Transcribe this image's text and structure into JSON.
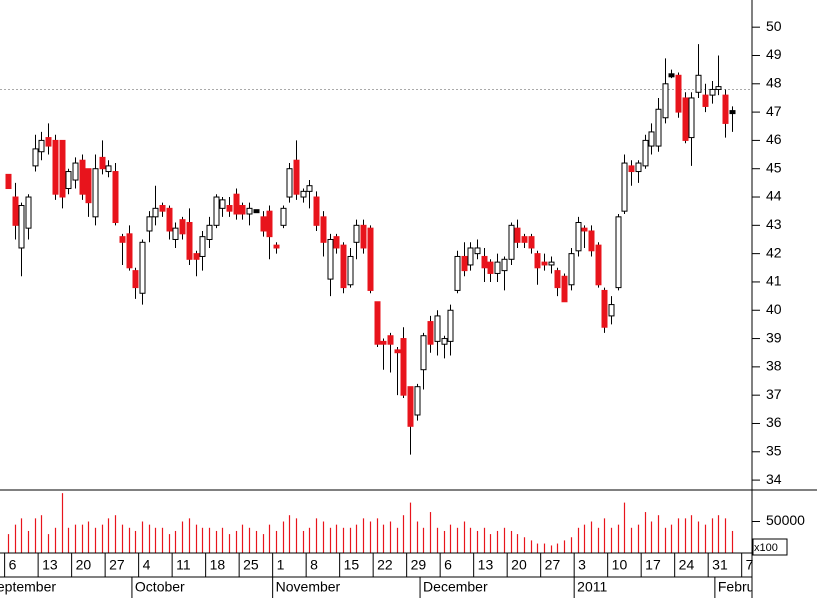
{
  "chart_data": {
    "type": "candlestick",
    "open": [
      44.8,
      44.0,
      42.2,
      42.9,
      45.1,
      45.6,
      46.1,
      46.0,
      46.0,
      44.3,
      44.6,
      45.3,
      45.0,
      43.3,
      45.4,
      44.9,
      44.9,
      42.6,
      42.7,
      41.4,
      40.6,
      42.8,
      43.3,
      43.7,
      43.6,
      42.5,
      43.2,
      43.1,
      42.0,
      41.9,
      42.5,
      43.0,
      43.6,
      43.7,
      44.1,
      43.7,
      43.4,
      43.5,
      43.3,
      43.5,
      42.3,
      43.0,
      44.0,
      45.3,
      44.0,
      44.2,
      44.0,
      43.3,
      41.1,
      42.6,
      42.3,
      40.9,
      42.4,
      43.0,
      42.9,
      40.3,
      38.9,
      39.1,
      38.6,
      39.0,
      37.3,
      36.3,
      37.9,
      39.6,
      38.9,
      38.8,
      38.9,
      40.7,
      41.9,
      41.6,
      42.0,
      41.9,
      41.7,
      41.3,
      41.4,
      41.8,
      42.9,
      42.6,
      42.6,
      42.0,
      41.7,
      41.6,
      41.4,
      41.2,
      40.9,
      42.1,
      42.9,
      42.8,
      42.3,
      40.7,
      39.8,
      40.8,
      43.5,
      45.1,
      44.9,
      45.1,
      45.8,
      45.8,
      46.8,
      48.3,
      48.3,
      47.5,
      46.1,
      47.7,
      47.6,
      47.6,
      47.8,
      47.6,
      47.0
    ],
    "high": [
      44.8,
      44.5,
      43.8,
      44.1,
      46.2,
      46.3,
      46.6,
      46.2,
      46.0,
      45.0,
      45.4,
      45.5,
      45.0,
      45.5,
      46.0,
      45.3,
      45.2,
      42.7,
      43.0,
      41.5,
      42.5,
      43.5,
      44.4,
      43.8,
      43.7,
      43.1,
      43.3,
      43.6,
      42.1,
      42.8,
      43.3,
      44.1,
      44.0,
      44.0,
      44.3,
      43.8,
      43.8,
      43.5,
      43.5,
      43.7,
      42.4,
      43.7,
      45.2,
      46.0,
      44.3,
      44.6,
      44.2,
      43.5,
      42.7,
      42.7,
      42.4,
      42.2,
      43.2,
      43.2,
      43.0,
      40.3,
      39.0,
      39.2,
      38.7,
      39.4,
      37.3,
      37.4,
      39.2,
      39.8,
      40.0,
      39.1,
      40.2,
      42.1,
      42.4,
      42.4,
      42.5,
      42.2,
      41.8,
      42.0,
      41.9,
      43.1,
      43.2,
      42.7,
      42.7,
      42.1,
      42.0,
      41.9,
      41.5,
      41.3,
      42.2,
      43.3,
      43.0,
      43.0,
      42.4,
      40.8,
      40.5,
      43.4,
      45.5,
      45.3,
      45.3,
      46.2,
      46.6,
      47.5,
      48.9,
      48.5,
      48.4,
      47.7,
      47.7,
      49.4,
      48.0,
      48.1,
      49.0,
      47.8,
      47.2
    ],
    "low": [
      44.3,
      42.5,
      41.2,
      42.5,
      44.9,
      45.3,
      45.5,
      43.9,
      43.6,
      44.1,
      44.3,
      43.9,
      43.3,
      43.0,
      44.8,
      44.7,
      43.0,
      41.6,
      41.4,
      40.4,
      40.2,
      42.4,
      43.0,
      43.3,
      42.5,
      42.2,
      42.5,
      41.6,
      41.2,
      41.4,
      42.2,
      42.9,
      43.3,
      43.3,
      43.2,
      43.2,
      43.0,
      43.5,
      42.6,
      41.8,
      42.0,
      42.9,
      43.8,
      43.9,
      43.8,
      43.6,
      42.8,
      41.9,
      40.5,
      42.0,
      40.6,
      40.8,
      41.8,
      42.0,
      40.6,
      38.7,
      37.9,
      37.8,
      37.0,
      36.9,
      34.9,
      36.1,
      37.2,
      38.5,
      38.4,
      38.3,
      38.4,
      40.6,
      41.2,
      41.4,
      41.8,
      41.0,
      41.0,
      41.0,
      40.7,
      41.6,
      42.2,
      42.2,
      42.0,
      40.9,
      41.4,
      41.3,
      40.5,
      40.3,
      40.7,
      41.9,
      42.2,
      41.9,
      40.8,
      39.2,
      39.5,
      40.7,
      43.4,
      44.4,
      44.5,
      45.0,
      45.5,
      45.6,
      46.6,
      48.2,
      46.8,
      45.9,
      45.1,
      47.5,
      47.0,
      47.3,
      47.6,
      46.1,
      46.3
    ],
    "close": [
      44.3,
      43.0,
      43.7,
      44.0,
      45.7,
      46.0,
      45.8,
      44.1,
      44.0,
      44.9,
      45.2,
      44.1,
      43.8,
      45.0,
      45.0,
      45.1,
      43.1,
      42.4,
      41.5,
      40.8,
      42.4,
      43.3,
      43.6,
      43.5,
      42.8,
      42.9,
      42.7,
      41.8,
      41.8,
      42.6,
      43.0,
      44.0,
      43.9,
      43.5,
      43.4,
      43.4,
      43.6,
      43.5,
      42.8,
      42.6,
      42.2,
      43.6,
      45.0,
      44.1,
      44.2,
      44.4,
      43.0,
      42.4,
      42.5,
      42.2,
      40.8,
      41.9,
      43.0,
      42.2,
      40.7,
      38.8,
      38.8,
      38.8,
      38.5,
      37.0,
      35.9,
      37.3,
      39.1,
      38.8,
      39.8,
      39.0,
      40.0,
      41.9,
      41.4,
      42.2,
      42.2,
      41.5,
      41.3,
      41.7,
      41.8,
      43.0,
      42.4,
      42.4,
      42.2,
      41.5,
      41.6,
      41.7,
      40.8,
      40.3,
      42.0,
      43.1,
      42.8,
      42.1,
      40.9,
      39.4,
      40.2,
      43.3,
      45.2,
      44.9,
      45.2,
      46.0,
      46.3,
      47.1,
      48.0,
      48.3,
      47.0,
      46.0,
      47.5,
      48.3,
      47.2,
      47.8,
      47.9,
      46.6,
      47.0
    ],
    "volume": [
      30000,
      45000,
      55000,
      35000,
      55000,
      60000,
      30000,
      40000,
      95000,
      40000,
      45000,
      45000,
      50000,
      40000,
      45000,
      55000,
      60000,
      45000,
      40000,
      35000,
      50000,
      45000,
      40000,
      40000,
      30000,
      35000,
      50000,
      55000,
      45000,
      40000,
      40000,
      35000,
      40000,
      30000,
      35000,
      45000,
      40000,
      35000,
      30000,
      45000,
      35000,
      50000,
      60000,
      55000,
      35000,
      40000,
      55000,
      50000,
      40000,
      45000,
      40000,
      40000,
      45000,
      55000,
      50000,
      55000,
      45000,
      50000,
      40000,
      60000,
      80000,
      50000,
      40000,
      65000,
      40000,
      35000,
      45000,
      40000,
      50000,
      40000,
      35000,
      40000,
      30000,
      35000,
      40000,
      35000,
      30000,
      25000,
      20000,
      15000,
      15000,
      12000,
      15000,
      20000,
      25000,
      40000,
      45000,
      50000,
      40000,
      55000,
      40000,
      45000,
      80000,
      40000,
      45000,
      65000,
      50000,
      60000,
      40000,
      45000,
      55000,
      55000,
      60000,
      50000,
      45000,
      55000,
      60000,
      55000,
      35000
    ],
    "reference_line": 47.8,
    "xlim": [
      -1.19,
      111.04
    ],
    "xticks": [
      {
        "value": -0.5,
        "label": "6"
      },
      {
        "value": 4.5,
        "label": "13"
      },
      {
        "value": 9.5,
        "label": "20"
      },
      {
        "value": 14.5,
        "label": "27"
      },
      {
        "value": 19.5,
        "label": "4"
      },
      {
        "value": 24.5,
        "label": "11"
      },
      {
        "value": 29.5,
        "label": "18"
      },
      {
        "value": 34.5,
        "label": "25"
      },
      {
        "value": 39.5,
        "label": "1"
      },
      {
        "value": 44.5,
        "label": "8"
      },
      {
        "value": 49.5,
        "label": "15"
      },
      {
        "value": 54.5,
        "label": "22"
      },
      {
        "value": 59.5,
        "label": "29"
      },
      {
        "value": 64.5,
        "label": "6"
      },
      {
        "value": 69.5,
        "label": "13"
      },
      {
        "value": 74.5,
        "label": "20"
      },
      {
        "value": 79.5,
        "label": "27"
      },
      {
        "value": 84.5,
        "label": "3"
      },
      {
        "value": 89.5,
        "label": "10"
      },
      {
        "value": 94.5,
        "label": "17"
      },
      {
        "value": 99.5,
        "label": "24"
      },
      {
        "value": 104.5,
        "label": "31"
      },
      {
        "value": 109.5,
        "label": "7"
      }
    ],
    "month_ticks": [
      {
        "value": -3.5,
        "label": "September"
      },
      {
        "value": 18.5,
        "label": "October"
      },
      {
        "value": 39.5,
        "label": "November"
      },
      {
        "value": 61.5,
        "label": "December"
      },
      {
        "value": 84.5,
        "label": "2011"
      },
      {
        "value": 105.5,
        "label": "February"
      }
    ],
    "ylim": [
      33.65,
      50.96
    ],
    "yticks": [
      34,
      35,
      36,
      37,
      38,
      39,
      40,
      41,
      42,
      43,
      44,
      45,
      46,
      47,
      48,
      49,
      50
    ],
    "volume_ylim": [
      0,
      100000
    ],
    "volume_yticks": [
      50000
    ],
    "volume_unit": "x100",
    "up_color": "#ffffff",
    "down_color": "#e8141c"
  }
}
